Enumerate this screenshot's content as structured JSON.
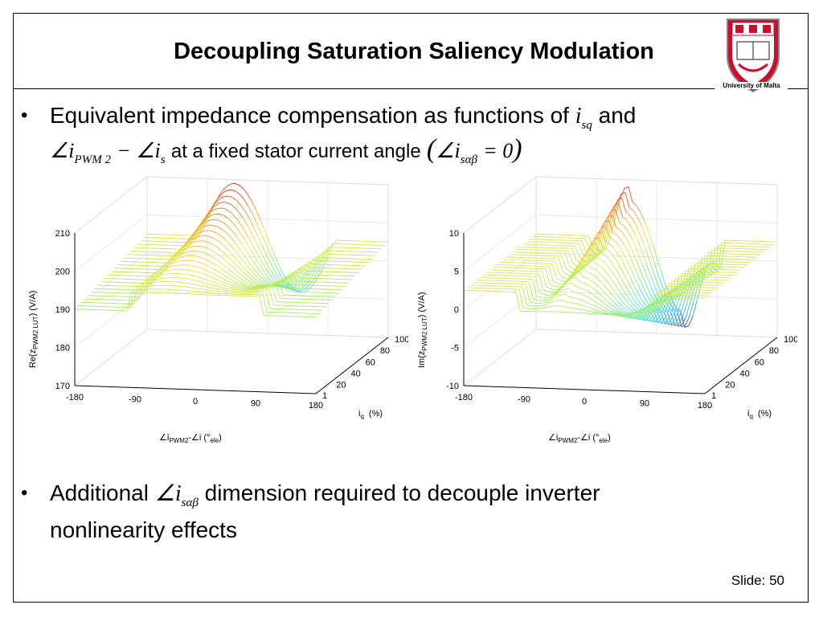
{
  "title": "Decoupling Saturation Saliency Modulation",
  "logo": {
    "caption": "University of Malta",
    "crest_color": "#c8102e"
  },
  "bullets": [
    {
      "line1_text": "Equivalent impedance compensation as functions of",
      "line1_var": "i",
      "line1_var_sub": "sq",
      "line1_and": "and",
      "line2_expr_a": "∠i",
      "line2_expr_a_sub": "PWM 2",
      "line2_minus": "− ∠i",
      "line2_expr_b_sub": "s",
      "line2_text": "at a fixed stator current angle",
      "line2_paren_expr": "∠i",
      "line2_paren_sub": "sαβ",
      "line2_paren_rhs": "= 0"
    },
    {
      "text_a": "Additional",
      "expr": "∠i",
      "expr_sub": "sαβ",
      "text_b": "dimension required to decouple inverter",
      "line2": "nonlinearity effects"
    }
  ],
  "slide_number": "Slide: 50",
  "chart_data": [
    {
      "type": "surface",
      "zlabel": "Re(z",
      "zlabel_sub": "PWM2 LUT",
      "zlabel_unit": ")   (V/A)",
      "xlabel": "∠i",
      "xlabel_sub": "PWM2",
      "xlabel_rest": "-∠i   (°",
      "xlabel_unit_sub": "ele",
      "xlabel_close": ")",
      "ylabel": "i",
      "ylabel_sub": "q",
      "ylabel_unit": "(%)",
      "x_ticks": [
        "-180",
        "-90",
        "0",
        "90",
        "180"
      ],
      "y_ticks": [
        "1",
        "20",
        "40",
        "60",
        "80",
        "100"
      ],
      "z_ticks": [
        "170",
        "180",
        "190",
        "200",
        "210"
      ],
      "zlim": [
        170,
        210
      ],
      "xlim": [
        -180,
        180
      ],
      "ylim": [
        1,
        100
      ],
      "colormap": [
        "#1a0ab8",
        "#2aa6f0",
        "#3fe0e0",
        "#9af05a",
        "#f0e040",
        "#f08a20",
        "#c81010"
      ]
    },
    {
      "type": "surface",
      "zlabel": "Im(z",
      "zlabel_sub": "PWM2 LUT",
      "zlabel_unit": ")   (V/A)",
      "xlabel": "∠i",
      "xlabel_sub": "PWM2",
      "xlabel_rest": "-∠i   (°",
      "xlabel_unit_sub": "ele",
      "xlabel_close": ")",
      "ylabel": "i",
      "ylabel_sub": "q",
      "ylabel_unit": "(%)",
      "x_ticks": [
        "-180",
        "-90",
        "0",
        "90",
        "180"
      ],
      "y_ticks": [
        "1",
        "20",
        "40",
        "60",
        "80",
        "100"
      ],
      "z_ticks": [
        "-10",
        "-5",
        "0",
        "5",
        "10"
      ],
      "zlim": [
        -10,
        10
      ],
      "xlim": [
        -180,
        180
      ],
      "ylim": [
        1,
        100
      ],
      "colormap": [
        "#1a0ab8",
        "#2aa6f0",
        "#3fe0e0",
        "#9af05a",
        "#f0e040",
        "#f08a20",
        "#c81010"
      ]
    }
  ]
}
